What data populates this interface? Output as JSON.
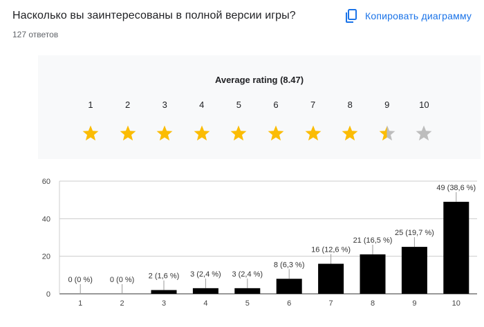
{
  "question": "Насколько вы заинтересованы в полной версии игры?",
  "answers_count": "127 ответов",
  "copy_button": {
    "label": "Копировать диаграмму",
    "icon": "copy-icon"
  },
  "rating": {
    "title": "Average rating (8.47)",
    "average": 8.47,
    "max": 10,
    "labels": [
      "1",
      "2",
      "3",
      "4",
      "5",
      "6",
      "7",
      "8",
      "9",
      "10"
    ],
    "star_color_filled": "#fbbc04",
    "star_color_empty": "#bdbdbd"
  },
  "chart_data": {
    "type": "bar",
    "categories": [
      "1",
      "2",
      "3",
      "4",
      "5",
      "6",
      "7",
      "8",
      "9",
      "10"
    ],
    "values": [
      0,
      0,
      2,
      3,
      3,
      8,
      16,
      21,
      25,
      49
    ],
    "data_labels": [
      "0 (0 %)",
      "0 (0 %)",
      "2 (1,6 %)",
      "3 (2,4 %)",
      "3 (2,4 %)",
      "8 (6,3 %)",
      "16 (12,6 %)",
      "21 (16,5 %)",
      "25 (19,7 %)",
      "49 (38,6 %)"
    ],
    "y_ticks": [
      "0",
      "20",
      "40",
      "60"
    ],
    "ylim": [
      0,
      60
    ],
    "grid": true,
    "bar_color": "#000000",
    "title": "",
    "xlabel": "",
    "ylabel": ""
  }
}
